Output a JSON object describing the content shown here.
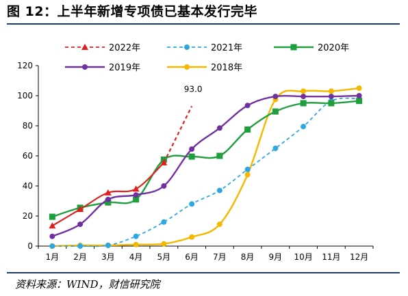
{
  "title": "图 12：上半年新增专项债已基本发行完毕",
  "source": "资料来源：WIND，财信研究院",
  "chart_data": {
    "type": "line",
    "categories": [
      "1月",
      "2月",
      "3月",
      "4月",
      "5月",
      "6月",
      "7月",
      "8月",
      "9月",
      "10月",
      "11月",
      "12月"
    ],
    "ylim": [
      0,
      120
    ],
    "yticks": [
      "0",
      "20",
      "40",
      "60",
      "80",
      "100",
      "120"
    ],
    "grid": false,
    "legend_position": "top",
    "series": [
      {
        "name": "2022年",
        "color": "#e02020",
        "dash": true,
        "marker": "triangle",
        "values": [
          13.5,
          24.5,
          35.5,
          38.0,
          55.5,
          93.0,
          null,
          null,
          null,
          null,
          null,
          null
        ],
        "annotation": {
          "index": 5,
          "text": "93.0"
        }
      },
      {
        "name": "2021年",
        "color": "#2ea7e0",
        "dash": true,
        "marker": "circle",
        "values": [
          0,
          0,
          0.5,
          6.5,
          16.0,
          28.0,
          37.0,
          51.0,
          65.0,
          79.5,
          96.5,
          98.0
        ]
      },
      {
        "name": "2020年",
        "color": "#1e9e3c",
        "dash": false,
        "marker": "square",
        "values": [
          19.5,
          25.5,
          29.0,
          31.0,
          57.5,
          59.5,
          60.0,
          77.5,
          89.5,
          95.0,
          95.0,
          96.5
        ]
      },
      {
        "name": "2019年",
        "color": "#7030a0",
        "dash": false,
        "marker": "circle",
        "values": [
          6.5,
          14.5,
          31.0,
          34.0,
          40.0,
          64.5,
          78.5,
          93.5,
          99.5,
          99.5,
          99.5,
          100.0
        ]
      },
      {
        "name": "2018年",
        "color": "#f5b800",
        "dash": false,
        "marker": "circle",
        "values": [
          0,
          0.5,
          0.5,
          1.0,
          1.5,
          6.0,
          14.5,
          47.5,
          97.5,
          103.0,
          103.0,
          105.0
        ]
      }
    ]
  }
}
